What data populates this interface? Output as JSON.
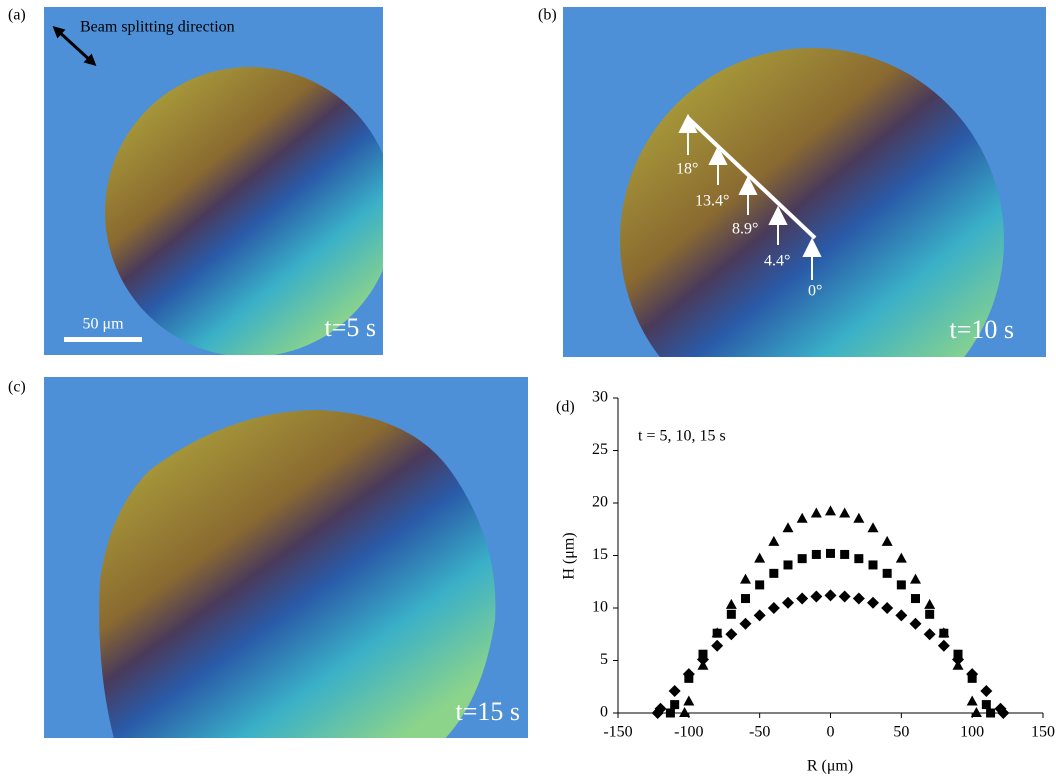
{
  "panels": {
    "a": {
      "label": "(a)",
      "note": "Beam splitting direction",
      "scale": "50 μm",
      "time": "t=5 s"
    },
    "b": {
      "label": "(b)",
      "time": "t=10 s",
      "angles": [
        "18°",
        "13.4°",
        "8.9°",
        "4.4°",
        "0°"
      ]
    },
    "c": {
      "label": "(c)",
      "time": "t=15 s"
    }
  },
  "chart_data": {
    "type": "scatter",
    "label": "(d)",
    "annotation": "t = 5, 10, 15 s",
    "x_label": "R (μm)",
    "y_label": "H (μm)",
    "xlim": [
      -150,
      150
    ],
    "xticks": [
      -150,
      -100,
      -50,
      0,
      50,
      100,
      150
    ],
    "ylim": [
      0,
      30
    ],
    "yticks": [
      0,
      5,
      10,
      15,
      20,
      25,
      30
    ],
    "series": [
      {
        "marker": "triangle",
        "color": "#000000",
        "x": [
          -103,
          -100,
          -90,
          -80,
          -70,
          -60,
          -50,
          -40,
          -30,
          -20,
          -10,
          0,
          10,
          20,
          30,
          40,
          50,
          60,
          70,
          80,
          90,
          100,
          103
        ],
        "values": [
          0,
          1.1,
          4.5,
          7.6,
          10.3,
          12.7,
          14.7,
          16.3,
          17.6,
          18.5,
          19.0,
          19.2,
          19.0,
          18.5,
          17.6,
          16.3,
          14.7,
          12.7,
          10.3,
          7.6,
          4.5,
          1.1,
          0
        ]
      },
      {
        "marker": "square",
        "color": "#000000",
        "x": [
          -113,
          -110,
          -100,
          -90,
          -80,
          -70,
          -60,
          -50,
          -40,
          -30,
          -20,
          -10,
          0,
          10,
          20,
          30,
          40,
          50,
          60,
          70,
          80,
          90,
          100,
          110,
          113
        ],
        "values": [
          0,
          0.8,
          3.3,
          5.6,
          7.6,
          9.4,
          10.9,
          12.2,
          13.3,
          14.1,
          14.7,
          15.1,
          15.2,
          15.1,
          14.7,
          14.1,
          13.3,
          12.2,
          10.9,
          9.4,
          7.6,
          5.6,
          3.3,
          0.8,
          0
        ]
      },
      {
        "marker": "diamond",
        "color": "#000000",
        "x": [
          -122,
          -120,
          -110,
          -100,
          -90,
          -80,
          -70,
          -60,
          -50,
          -40,
          -30,
          -20,
          -10,
          0,
          10,
          20,
          30,
          40,
          50,
          60,
          70,
          80,
          90,
          100,
          110,
          120,
          122
        ],
        "values": [
          0,
          0.4,
          2.1,
          3.7,
          5.1,
          6.4,
          7.5,
          8.5,
          9.3,
          10.0,
          10.5,
          10.9,
          11.1,
          11.2,
          11.1,
          10.9,
          10.5,
          10.0,
          9.3,
          8.5,
          7.5,
          6.4,
          5.1,
          3.7,
          2.1,
          0.4,
          0
        ]
      }
    ]
  }
}
